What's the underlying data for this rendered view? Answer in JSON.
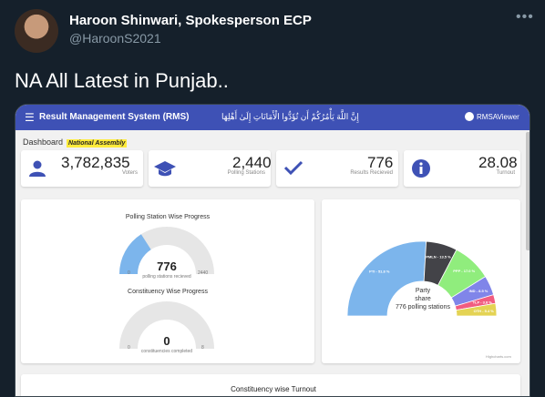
{
  "tweet": {
    "author_name": "Haroon Shinwari, Spokesperson ECP",
    "handle": "@HaroonS2021",
    "text": "NA All Latest in Punjab.."
  },
  "app": {
    "title": "Result Management System (RMS)",
    "quote": "إِنَّ اللَّهَ يَأْمُرُكُمْ أَن تُؤَدُّوا الْأَمَانَاتِ إِلَىٰ أَهْلِهَا",
    "user": "RMSAViewer",
    "breadcrumb": "Dashboard",
    "breadcrumb_tag": "National Assembly"
  },
  "stats": [
    {
      "value": "3,782,835",
      "label": "Voters",
      "icon": "person-icon"
    },
    {
      "value": "2,440",
      "label": "Polling Stations",
      "icon": "graduation-cap-icon"
    },
    {
      "value": "776",
      "label": "Results Recieved",
      "icon": "check-icon"
    },
    {
      "value": "28.08",
      "label": "Turnout",
      "icon": "info-icon"
    }
  ],
  "gauges": {
    "polling": {
      "title": "Polling Station Wise Progress",
      "value": "776",
      "sub": "polling stations recieved",
      "min": "0",
      "max": "2440",
      "fraction": 0.318
    },
    "constituency": {
      "title": "Constituency Wise Progress",
      "value": "0",
      "sub": "constituencies completed",
      "min": "0",
      "max": "8",
      "fraction": 0
    }
  },
  "party_chart": {
    "center_line1": "Party",
    "center_line2": "share",
    "center_line3": "776 polling stations",
    "credits": "Highcharts.com",
    "slices": [
      {
        "label": "PTI - 51.8 %",
        "value": 51.8,
        "color": "#7cb5ec"
      },
      {
        "label": "PMLN - 13.5 %",
        "value": 13.5,
        "color": "#434348"
      },
      {
        "label": "PPP - 17.0 %",
        "value": 17.0,
        "color": "#90ed7d"
      },
      {
        "label": "IND - 8.5 %",
        "value": 8.5,
        "color": "#8085e9"
      },
      {
        "label": "TLP - 3.8 %",
        "value": 3.8,
        "color": "#f15c80"
      },
      {
        "label": "OTH - 5.4 %",
        "value": 5.4,
        "color": "#e4d354"
      }
    ]
  },
  "footer_title": "Constituency wise Turnout"
}
